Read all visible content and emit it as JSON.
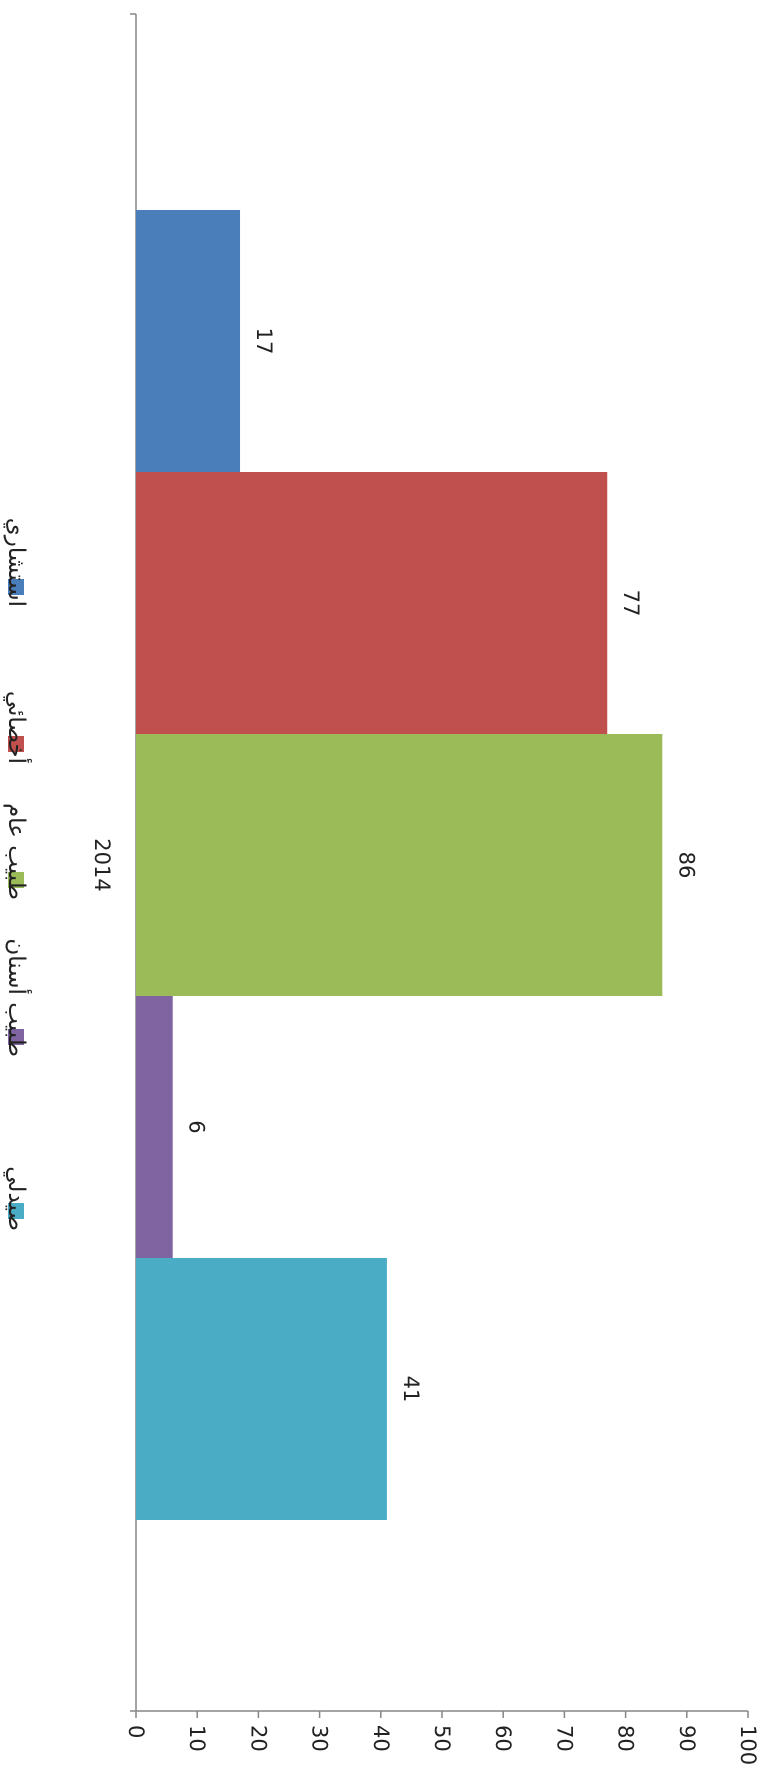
{
  "chart_data": {
    "type": "bar",
    "orientation": "horizontal",
    "rotation": "page rotated 90° clockwise",
    "categories": [
      "2014"
    ],
    "series": [
      {
        "name": "استشاري",
        "values": [
          17
        ],
        "color": "#4a7ebb"
      },
      {
        "name": "أخصائي",
        "values": [
          77
        ],
        "color": "#c0504d"
      },
      {
        "name": "طبيب عام",
        "values": [
          86
        ],
        "color": "#9bbb59"
      },
      {
        "name": "طبيب أسنان",
        "values": [
          6
        ],
        "color": "#8064a2"
      },
      {
        "name": "صيدلي",
        "values": [
          41
        ],
        "color": "#4bacc6"
      }
    ],
    "value_axis": {
      "min": 0,
      "max": 100,
      "step": 10
    },
    "title": "",
    "xlabel": "",
    "ylabel": "",
    "grid": false,
    "legend": {
      "position": "left"
    },
    "data_labels": true
  }
}
